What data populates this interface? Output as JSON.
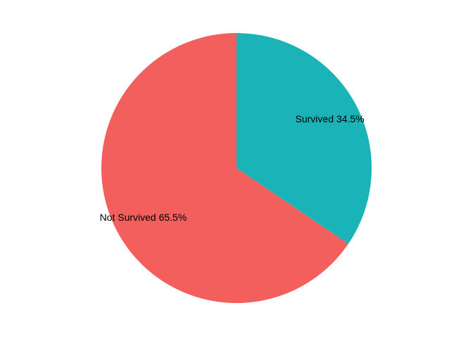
{
  "chart_data": {
    "type": "pie",
    "categories": [
      "Survived",
      "Not Survived"
    ],
    "values": [
      34.5,
      65.5
    ],
    "labels": [
      "Survived 34.5%",
      "Not Survived 65.5%"
    ],
    "colors": [
      "#19B3B8",
      "#F25F5C"
    ],
    "start_angle_deg": 0,
    "direction": "clockwise",
    "legend": "none"
  }
}
